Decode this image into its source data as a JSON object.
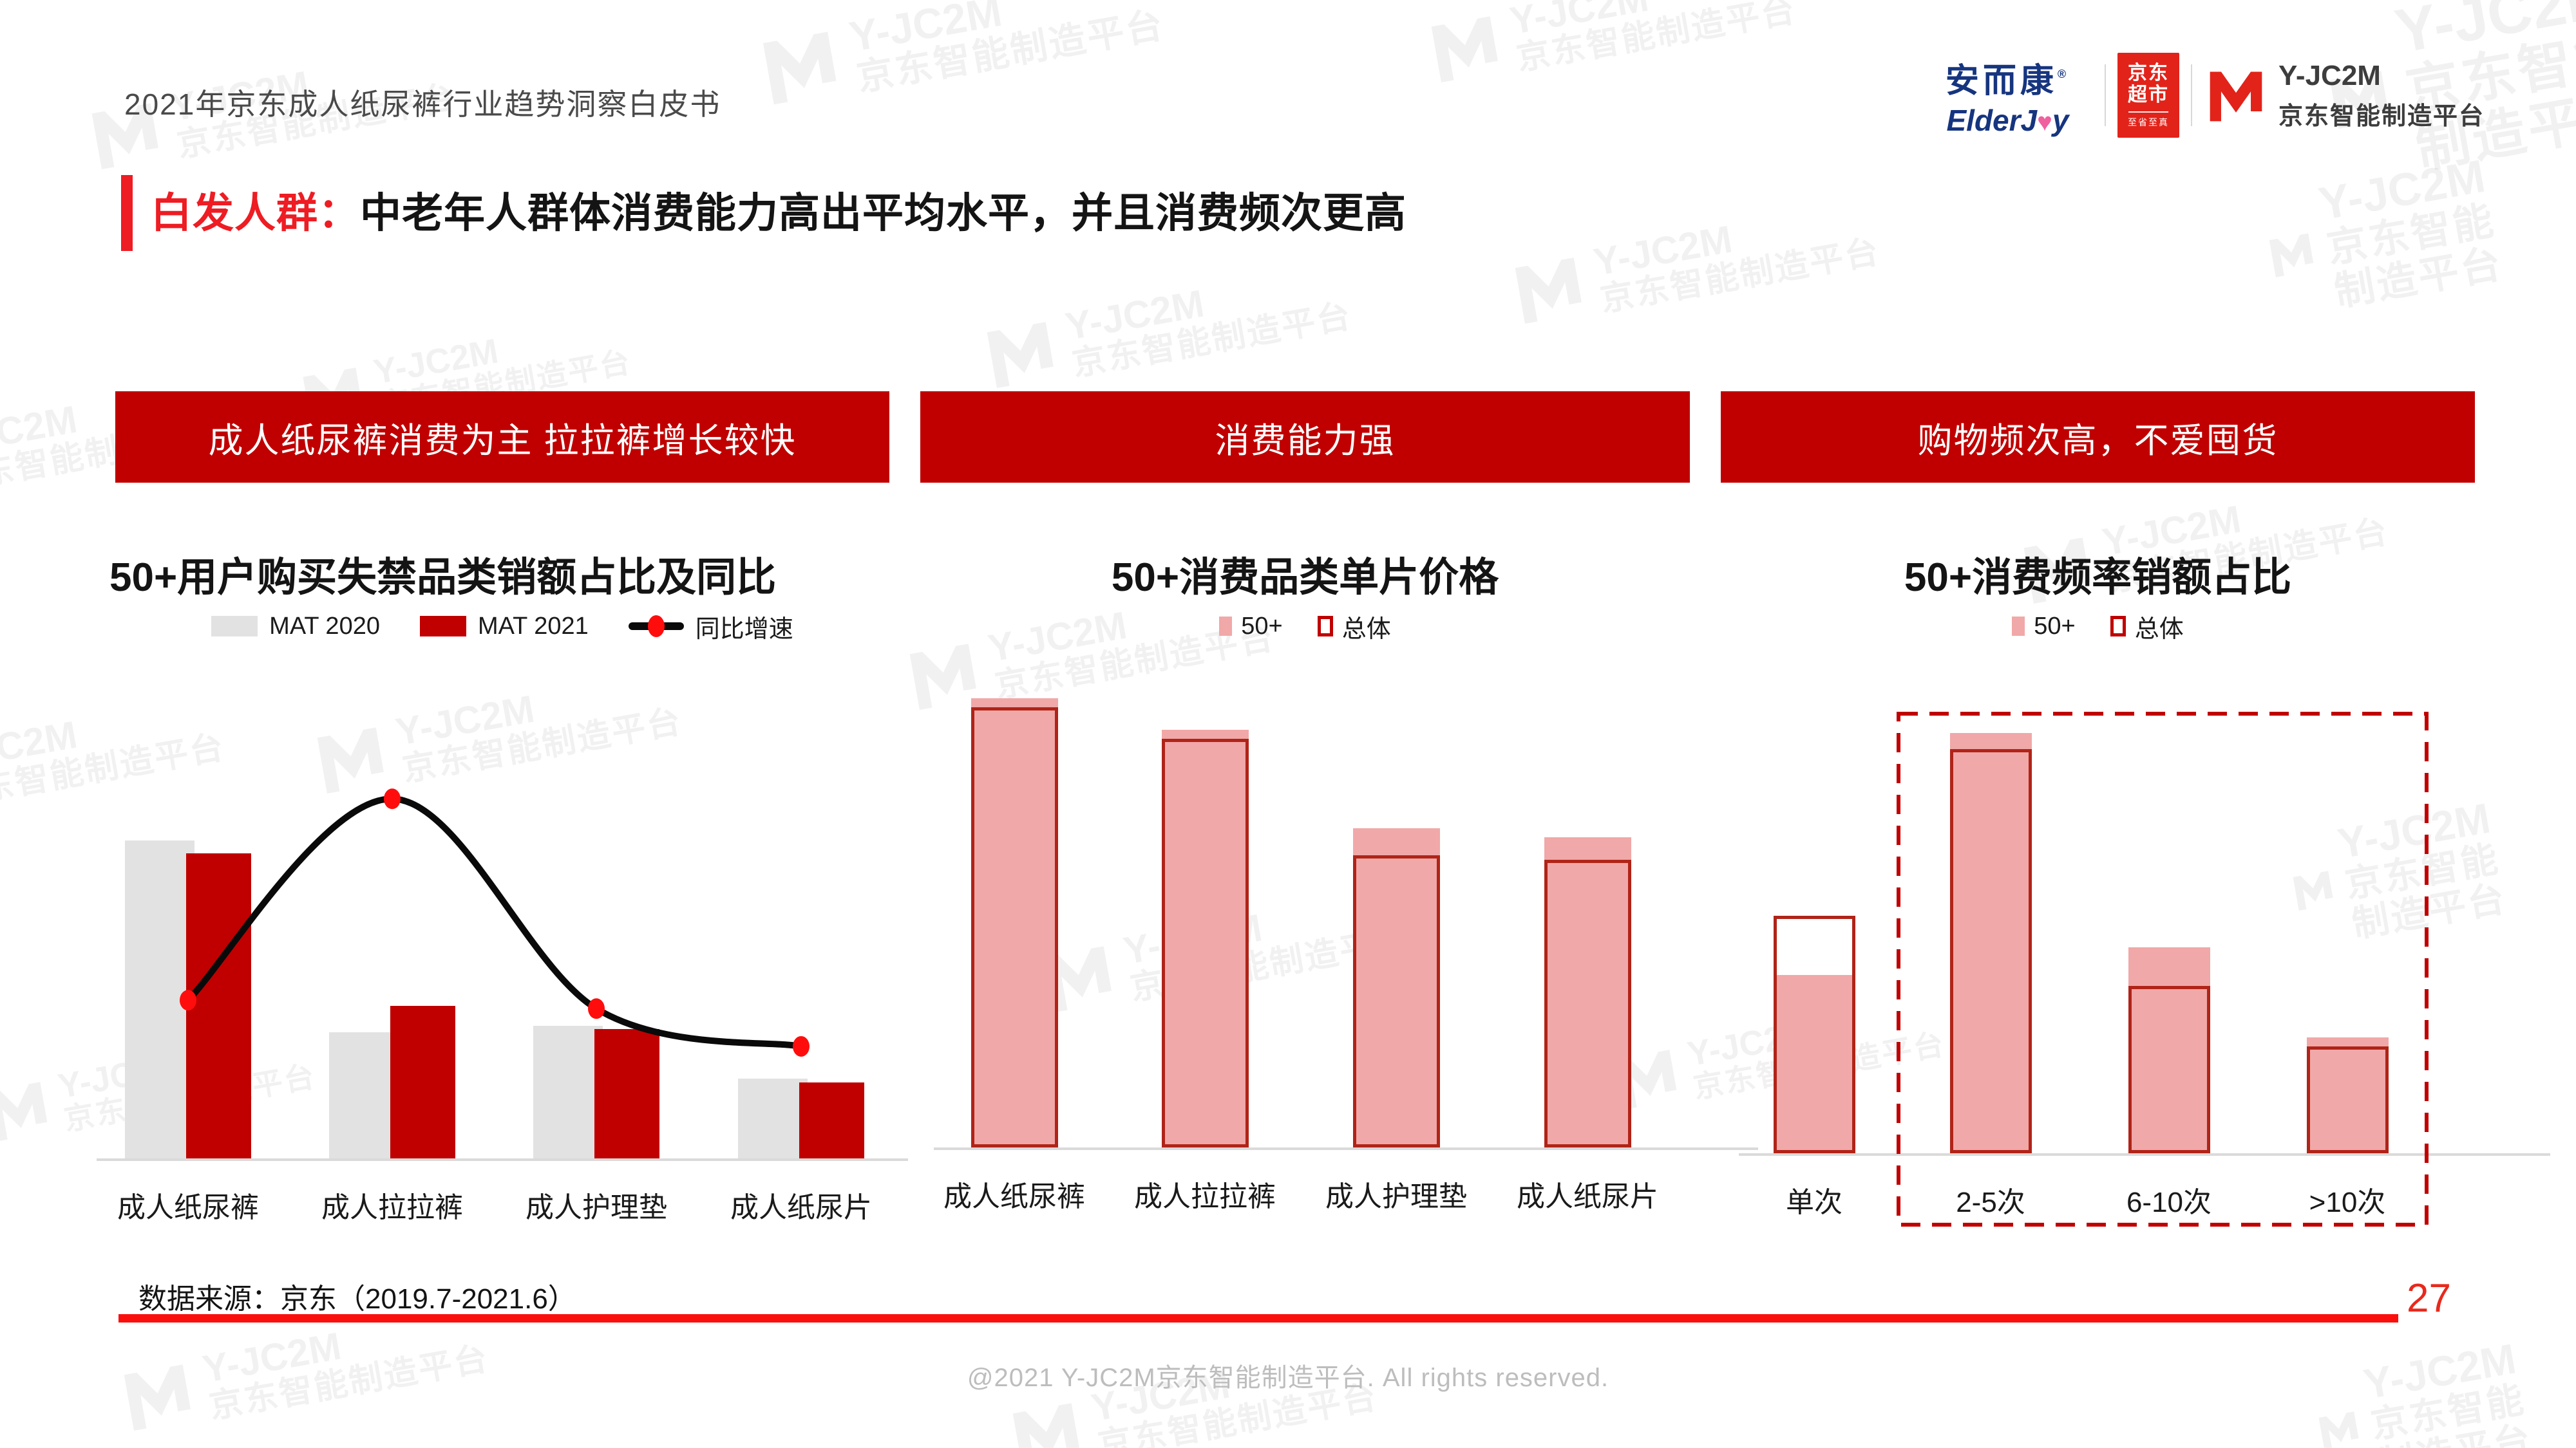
{
  "meta": {
    "doc_title": "2021年京东成人纸尿裤行业趋势洞察白皮书",
    "data_source": "数据来源：京东（2019.7-2021.6）",
    "footer": "@2021 Y-JC2M京东智能制造平台. All rights reserved.",
    "page_number": "27"
  },
  "logos": {
    "elderjoy": {
      "cn": "安而康",
      "reg": "®",
      "en_pre": "ElderJ",
      "heart": "♥",
      "en_post": "y"
    },
    "jd_market": {
      "line1": "京东",
      "line2": "超市",
      "tagline": "至省至真"
    },
    "yjc2m": {
      "name": "Y-JC2M",
      "subtitle": "京东智能制造平台"
    }
  },
  "headline": {
    "accent": "白发人群：",
    "rest": "中老年人群体消费能力高出平均水平，并且消费频次更高"
  },
  "banners": [
    "成人纸尿裤消费为主 拉拉裤增长较快",
    "消费能力强",
    "购物频次高，不爱囤货"
  ],
  "watermark": {
    "line1": "Y-JC2M",
    "line2": "京东智能制造平台"
  },
  "colors": {
    "accent_red": "#C00000",
    "headline_red": "#EE1C23",
    "bar_gray": "#E2E2E2",
    "bar_red": "#C00000",
    "bar_pink": "#F1A8A8",
    "outline_red": "#B02418",
    "line_black": "#0A0A0A",
    "dot_red": "#FF0D0D",
    "jd_red": "#E2231A",
    "brand_blue": "#16357F",
    "divider_red": "#FB0F0C",
    "footer_gray": "#BDBDBD",
    "page_red": "#E8291C"
  },
  "chart_data": [
    {
      "type": "bar",
      "subtype": "grouped bars + yoy line",
      "title": "50+用户购买失禁品类销额占比及同比",
      "categories": [
        "成人纸尿裤",
        "成人拉拉裤",
        "成人护理垫",
        "成人纸尿片"
      ],
      "series": [
        {
          "name": "MAT 2020",
          "color": "#E2E2E2",
          "values": [
            48,
            19,
            20,
            12
          ]
        },
        {
          "name": "MAT 2021",
          "color": "#C00000",
          "values": [
            46,
            23,
            19.5,
            11.5
          ]
        }
      ],
      "line": {
        "name": "同比增速",
        "color": "#0A0A0A",
        "dot_color": "#FF0D0D",
        "values": [
          38,
          86,
          36,
          27
        ]
      },
      "ylim": [
        0,
        100
      ],
      "grid": false,
      "legend_position": "top",
      "value_note": "无数值轴标注：柱值为按柱高估算的销额占比%；同比增速为按曲线高度估算的相对指数，峰值在成人拉拉裤"
    },
    {
      "type": "bar",
      "subtype": "overlapped bars (filled behind, outlined front)",
      "title": "50+消费品类单片价格",
      "categories": [
        "成人纸尿裤",
        "成人拉拉裤",
        "成人护理垫",
        "成人纸尿片"
      ],
      "series": [
        {
          "name": "50+",
          "style": "filled",
          "color": "#F1A8A8",
          "values": [
            100,
            93,
            71,
            69
          ]
        },
        {
          "name": "总体",
          "style": "outline",
          "color": "#B02418",
          "values": [
            98,
            91,
            65,
            64
          ]
        }
      ],
      "ylim": [
        0,
        100
      ],
      "grid": false,
      "legend_position": "top",
      "value_note": "无数值轴标注：相对价格指数（最高柱=100），50+ 各品类均略高于总体"
    },
    {
      "type": "bar",
      "subtype": "overlapped bars (filled behind, outlined front) + dashed highlight box",
      "title": "50+消费频率销额占比",
      "categories": [
        "单次",
        "2-5次",
        "6-10次",
        ">10次"
      ],
      "series": [
        {
          "name": "50+",
          "style": "filled",
          "color": "#F1A8A8",
          "values": [
            19.5,
            46,
            22.5,
            12.7
          ]
        },
        {
          "name": "总体",
          "style": "outline",
          "color": "#B02418",
          "values": [
            26,
            44.2,
            18.3,
            11.7
          ]
        }
      ],
      "highlight_box_categories": [
        "2-5次",
        "6-10次",
        ">10次"
      ],
      "ylim": [
        0,
        50
      ],
      "grid": false,
      "legend_position": "top",
      "value_note": "无数值轴标注：按柱高估算的销额占比%（每系列合计≈100%）"
    }
  ]
}
